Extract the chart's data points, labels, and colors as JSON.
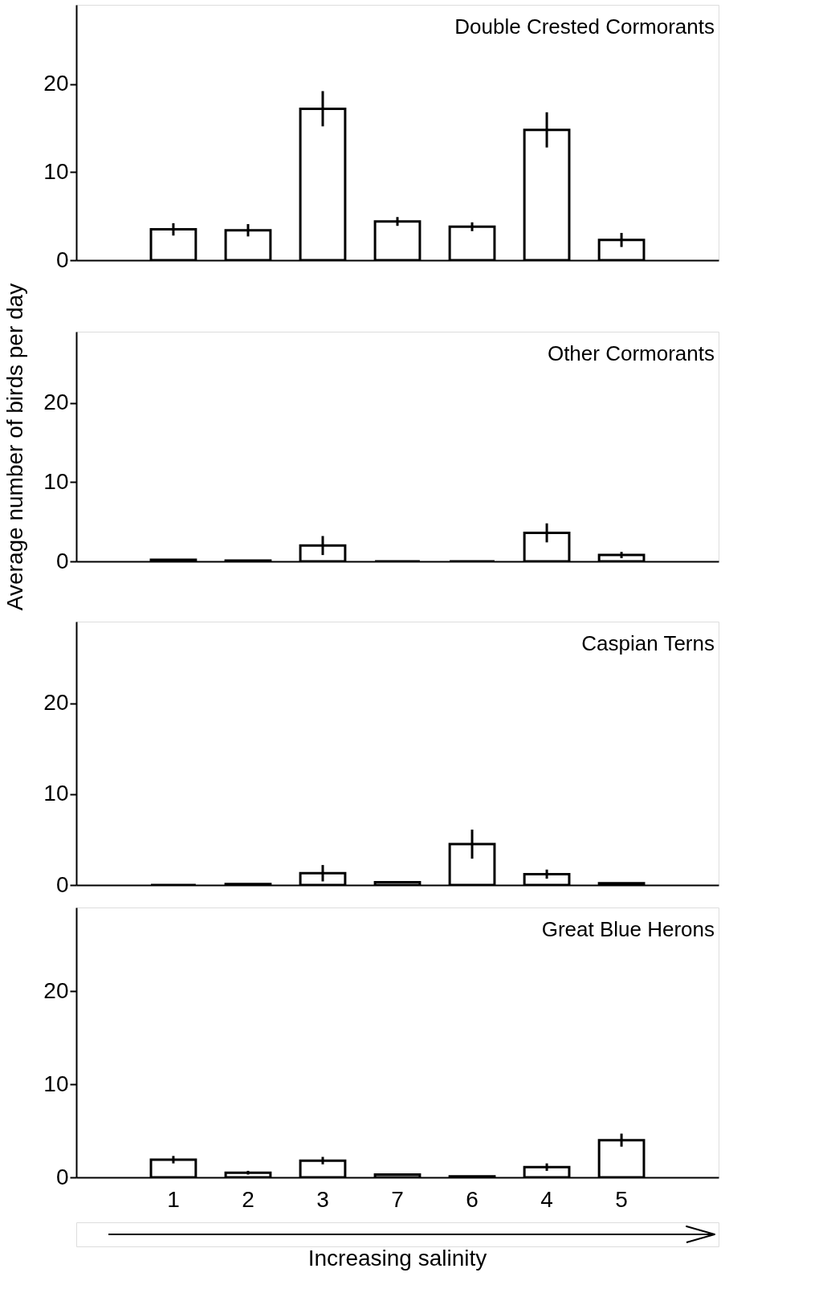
{
  "chart_data": [
    {
      "type": "bar",
      "title": "Double Crested Cormorants",
      "categories": [
        "1",
        "2",
        "3",
        "7",
        "6",
        "4",
        "5"
      ],
      "values": [
        3.5,
        3.4,
        17.2,
        4.4,
        3.8,
        14.8,
        2.3
      ],
      "errors": [
        0.7,
        0.7,
        2.0,
        0.5,
        0.5,
        2.0,
        0.8
      ],
      "color": "#ffffff",
      "ylim": [
        0,
        29
      ],
      "yticks": [
        0,
        10,
        20
      ],
      "grid": false,
      "tick_labels": "y"
    },
    {
      "type": "bar",
      "title": "Other Cormorants",
      "categories": [
        "1",
        "2",
        "3",
        "7",
        "6",
        "4",
        "5"
      ],
      "values": [
        0.2,
        0.1,
        2.0,
        0,
        0,
        3.6,
        0.8
      ],
      "errors": [
        null,
        null,
        1.2,
        null,
        null,
        1.2,
        0.4
      ],
      "colors": [
        "#ffffff",
        "#ffffff",
        "#ffffff",
        "#000000",
        "#000000",
        "#ffffff",
        "#ffffff"
      ],
      "ylim": [
        0,
        29
      ],
      "yticks": [
        0,
        10,
        20
      ],
      "grid": false,
      "tick_labels": "y",
      "ylabel": "Average number of birds per day"
    },
    {
      "type": "bar",
      "title": "Caspian Terns",
      "categories": [
        "1",
        "2",
        "3",
        "7",
        "6",
        "4",
        "5"
      ],
      "values": [
        0,
        0.1,
        1.3,
        0.3,
        4.5,
        1.2,
        0.2
      ],
      "errors": [
        null,
        null,
        0.9,
        null,
        1.6,
        0.5,
        null
      ],
      "colors": [
        "#000000",
        "#ffffff",
        "#ffffff",
        "#ffffff",
        "#ffffff",
        "#ffffff",
        "#ffffff"
      ],
      "ylim": [
        0,
        29
      ],
      "yticks": [
        0,
        10,
        20
      ],
      "grid": false,
      "tick_labels": "y"
    },
    {
      "type": "bar",
      "title": "Great Blue Herons",
      "categories": [
        "1",
        "2",
        "3",
        "7",
        "6",
        "4",
        "5"
      ],
      "values": [
        1.9,
        0.5,
        1.8,
        0.3,
        0.1,
        1.1,
        4.0
      ],
      "errors": [
        0.4,
        0.2,
        0.4,
        null,
        null,
        0.4,
        0.7
      ],
      "color": "#ffffff",
      "ylim": [
        0,
        29
      ],
      "yticks": [
        0,
        10,
        20
      ],
      "grid": false,
      "xlabel": "Increasing salinity"
    }
  ]
}
